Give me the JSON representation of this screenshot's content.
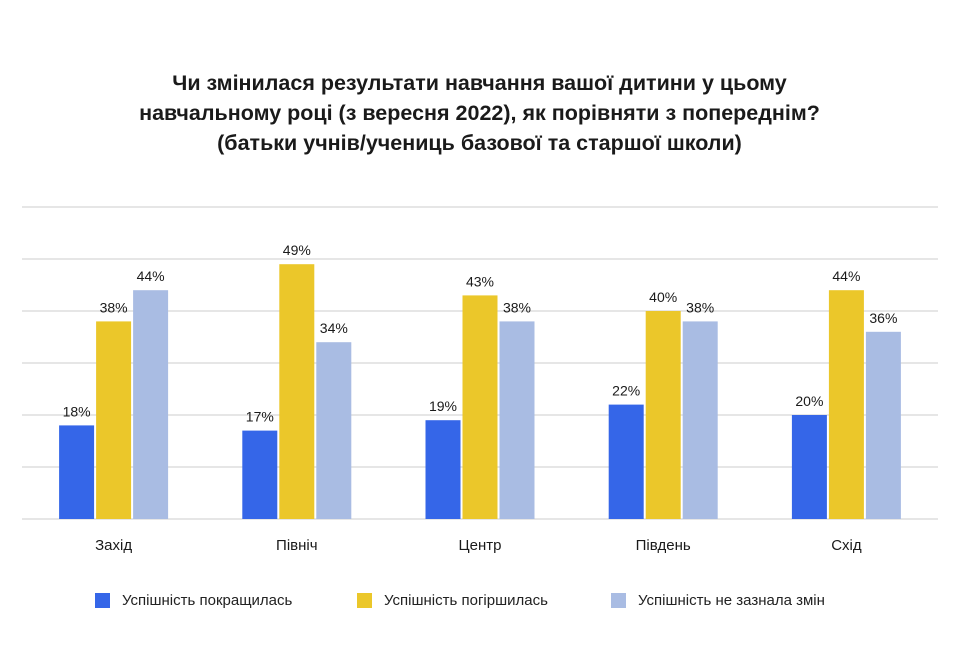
{
  "title": {
    "line1": "Чи змінилася результати навчання вашої дитини у цьому",
    "line2": "навчальному році (з вересня 2022), як порівняти з попереднім?",
    "line3": "(батьки учнів/учениць базової та старшої школи)"
  },
  "colors": {
    "improved": "#3566E8",
    "worsened": "#EBC72A",
    "unchanged": "#A9BCE3",
    "grid": "#CCCCCC"
  },
  "chart_data": {
    "type": "bar",
    "title": "Чи змінилася результати навчання вашої дитини у цьому навчальному році (з вересня 2022), як порівняти з попереднім? (батьки учнів/учениць базової та старшої школи)",
    "categories": [
      "Захід",
      "Північ",
      "Центр",
      "Південь",
      "Схід"
    ],
    "series": [
      {
        "name": "Успішність покращилась",
        "values": [
          18,
          17,
          19,
          22,
          20
        ],
        "labels": [
          "18%",
          "17%",
          "19%",
          "22%",
          "20%"
        ]
      },
      {
        "name": "Успішність погіршилась",
        "values": [
          38,
          49,
          43,
          40,
          44
        ],
        "labels": [
          "38%",
          "49%",
          "43%",
          "40%",
          "44%"
        ]
      },
      {
        "name": "Успішність не зазнала змін",
        "values": [
          44,
          34,
          38,
          38,
          36
        ],
        "labels": [
          "44%",
          "34%",
          "38%",
          "38%",
          "36%"
        ]
      }
    ],
    "ylim": [
      0,
      60
    ],
    "grid": true,
    "legend_position": "bottom",
    "xlabel": "",
    "ylabel": ""
  }
}
